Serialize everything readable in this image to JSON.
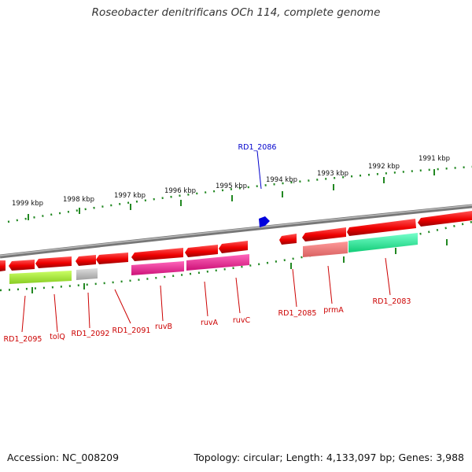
{
  "title": "Roseobacter denitrificans OCh 114, complete genome",
  "footer": {
    "accession": "Accession: NC_008209",
    "stats": "Topology: circular; Length: 4,133,097 bp; Genes: 3,988"
  },
  "scale": {
    "kbp_labels": [
      "1999 kbp",
      "1998 kbp",
      "1997 kbp",
      "1996 kbp",
      "1995 kbp",
      "1994 kbp",
      "1993 kbp",
      "1992 kbp",
      "1991 kbp"
    ]
  },
  "highlight": {
    "label": "RD1_2086",
    "color": "#0000cc"
  },
  "gene_labels": [
    "RD1_2095",
    "tolQ",
    "RD1_2092",
    "RD1_2091",
    "ruvB",
    "ruvA",
    "ruvC",
    "RD1_2085",
    "prmA",
    "RD1_2083"
  ],
  "colors": {
    "cds": "#ee0000",
    "cds_light": "#f08080",
    "label": "#cc0000",
    "backbone": "#888888",
    "tick": "#228822",
    "yellowgreen": "#aaee33",
    "gray": "#b8b8b8",
    "magenta": "#ee2288",
    "mint": "#22ee99"
  }
}
